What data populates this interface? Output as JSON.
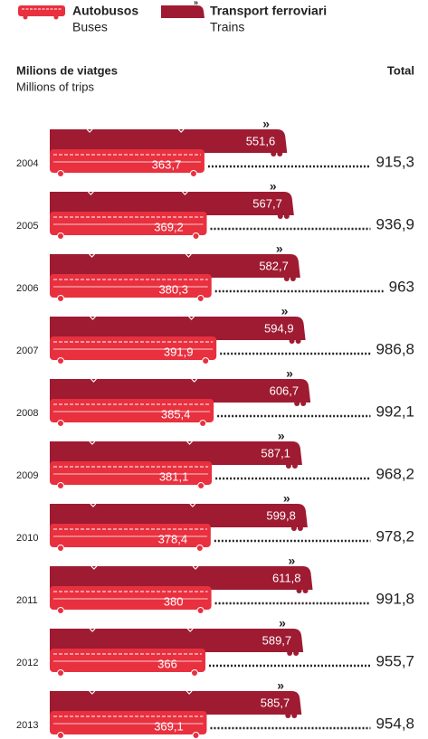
{
  "chart_data": {
    "type": "bar",
    "axis_title": "Milions de viatges",
    "axis_subtitle": "Millions of trips",
    "categories": [
      "2004",
      "2005",
      "2006",
      "2007",
      "2008",
      "2009",
      "2010",
      "2011",
      "2012",
      "2013"
    ],
    "series": [
      {
        "name": "Transport ferroviari",
        "name_en": "Trains",
        "color": "#9e1b32",
        "values": [
          551.6,
          567.7,
          582.7,
          594.9,
          606.7,
          587.1,
          599.8,
          611.8,
          589.7,
          585.7
        ],
        "value_labels": [
          "551,6",
          "567,7",
          "582,7",
          "594,9",
          "606,7",
          "587,1",
          "599,8",
          "611,8",
          "589,7",
          "585,7"
        ]
      },
      {
        "name": "Autobusos",
        "name_en": "Buses",
        "color": "#e8303f",
        "values": [
          363.7,
          369.2,
          380.3,
          391.9,
          385.4,
          381.1,
          378.4,
          380,
          366,
          369.1
        ],
        "value_labels": [
          "363,7",
          "369,2",
          "380,3",
          "391,9",
          "385,4",
          "381,1",
          "378,4",
          "380",
          "366",
          "369,1"
        ]
      },
      {
        "name": "Total",
        "color": "#222222",
        "values": [
          915.3,
          936.9,
          963,
          986.8,
          992.1,
          968.2,
          978.2,
          991.8,
          955.7,
          954.8
        ],
        "value_labels": [
          "915,3",
          "936,9",
          "963",
          "986,8",
          "992,1",
          "968,2",
          "978,2",
          "991,8",
          "955,7",
          "954,8"
        ]
      }
    ]
  }
}
